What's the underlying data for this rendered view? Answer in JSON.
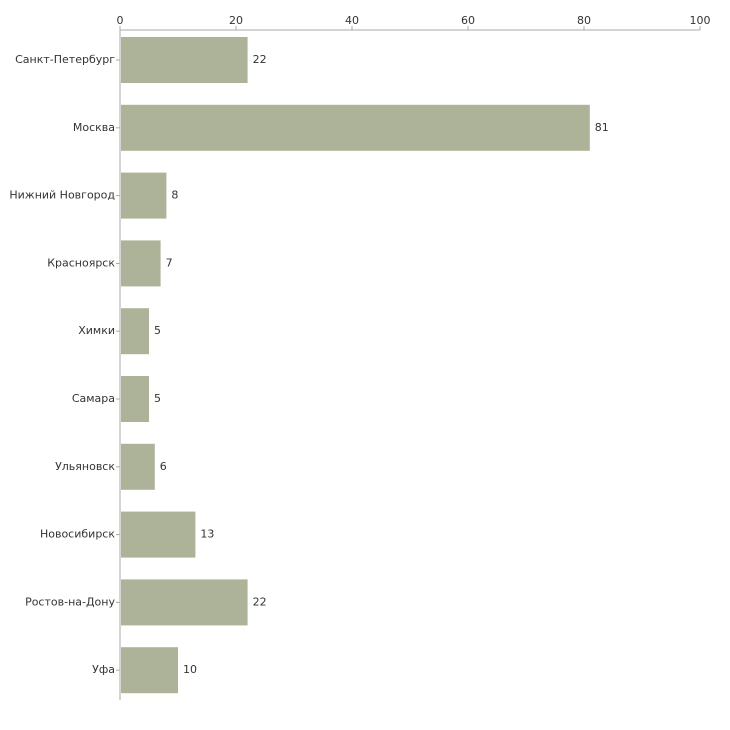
{
  "chart_data": {
    "type": "bar",
    "orientation": "horizontal",
    "title": "",
    "xlabel": "",
    "ylabel": "",
    "xlim": [
      0,
      100
    ],
    "ticks": [
      0,
      20,
      40,
      60,
      80,
      100
    ],
    "tick_labels": [
      "0",
      "20",
      "40",
      "60",
      "80",
      "100"
    ],
    "grid": false,
    "x_axis_position": "top",
    "categories": [
      "Санкт-Петербург",
      "Москва",
      "Нижний Новгород",
      "Красноярск",
      "Химки",
      "Самара",
      "Ульяновск",
      "Новосибирск",
      "Ростов-на-Дону",
      "Уфа"
    ],
    "values": [
      22,
      81,
      8,
      7,
      5,
      5,
      6,
      13,
      22,
      10
    ],
    "value_labels": [
      "22",
      "81",
      "8",
      "7",
      "5",
      "5",
      "6",
      "13",
      "22",
      "10"
    ],
    "bar_color": "#adb398",
    "axis_color": "#aaaaaa"
  }
}
